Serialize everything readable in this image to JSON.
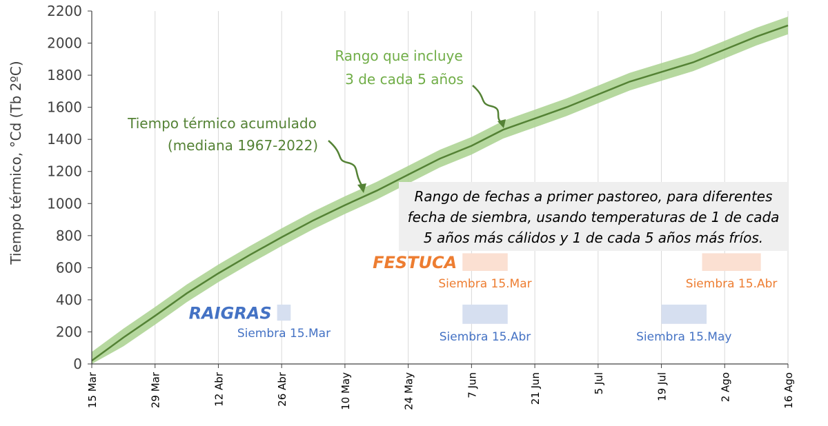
{
  "chart_data": {
    "type": "line",
    "title": "",
    "ylabel": "Tiempo térmico, °Cd (Tb 2ºC)",
    "xlabel": "",
    "ylim": [
      0,
      2200
    ],
    "yticks": [
      0,
      200,
      400,
      600,
      800,
      1000,
      1200,
      1400,
      1600,
      1800,
      2000,
      2200
    ],
    "xlim": [
      "15 Mar",
      "16 Ago"
    ],
    "xticks": [
      {
        "day": 0,
        "label": "15 Mar"
      },
      {
        "day": 14,
        "label": "29 Mar"
      },
      {
        "day": 28,
        "label": "12 Abr"
      },
      {
        "day": 42,
        "label": "26 Abr"
      },
      {
        "day": 56,
        "label": "10 May"
      },
      {
        "day": 70,
        "label": "24 May"
      },
      {
        "day": 84,
        "label": "7 Jun"
      },
      {
        "day": 98,
        "label": "21 Jun"
      },
      {
        "day": 112,
        "label": "5 Jul"
      },
      {
        "day": 126,
        "label": "19 Jul"
      },
      {
        "day": 140,
        "label": "2 Ago"
      },
      {
        "day": 154,
        "label": "16 Ago"
      }
    ],
    "grid": "vertical",
    "series": [
      {
        "name": "Tiempo térmico acumulado (mediana 1967-2022)",
        "color": "#548235",
        "x": [
          0,
          7,
          14,
          21,
          28,
          35,
          42,
          49,
          56,
          63,
          70,
          77,
          84,
          91,
          98,
          105,
          112,
          119,
          126,
          133,
          140,
          147,
          154
        ],
        "y": [
          20,
          165,
          300,
          440,
          565,
          680,
          790,
          895,
          990,
          1080,
          1180,
          1280,
          1360,
          1460,
          1530,
          1600,
          1680,
          1760,
          1820,
          1880,
          1960,
          2040,
          2110
        ]
      },
      {
        "name": "Rango que incluye 3 de cada 5 años",
        "color": "#a9d18e",
        "half_width": 55
      }
    ],
    "annotations": {
      "median_label": [
        "Tiempo térmico acumulado",
        "(mediana 1967-2022)"
      ],
      "range_label": [
        "Rango que incluye",
        "3 de cada 5 años"
      ],
      "box_text": [
        "Rango de fechas a primer pastoreo, para diferentes",
        "fecha de siembra, usando temperaturas de 1 de cada",
        "5 años más cálidos y 1 de cada 5 años más fríos."
      ]
    },
    "crops": [
      {
        "name": "RAIGRAS",
        "color": "#4472c4",
        "fill": "#d6dff0",
        "ranges": [
          {
            "label": "Siembra 15.Mar",
            "start_day": 41,
            "end_day": 44,
            "y_low": 270,
            "y_high": 370
          },
          {
            "label": "Siembra 15.Abr",
            "start_day": 82,
            "end_day": 92,
            "y_low": 250,
            "y_high": 370
          },
          {
            "label": "Siembra 15.May",
            "start_day": 126,
            "end_day": 136,
            "y_low": 250,
            "y_high": 370
          }
        ]
      },
      {
        "name": "FESTUCA",
        "color": "#ed7d31",
        "fill": "#fbe0d2",
        "ranges": [
          {
            "label": "Siembra 15.Mar",
            "start_day": 82,
            "end_day": 92,
            "y_low": 580,
            "y_high": 690
          },
          {
            "label": "Siembra 15.Abr",
            "start_day": 135,
            "end_day": 148,
            "y_low": 580,
            "y_high": 690
          }
        ]
      }
    ]
  }
}
